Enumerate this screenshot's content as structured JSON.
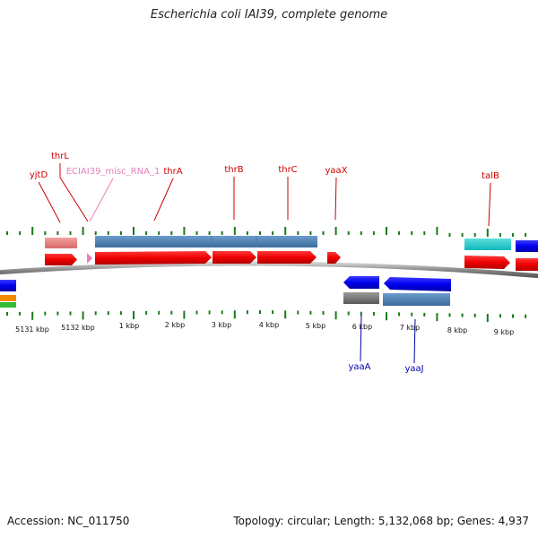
{
  "title": "Escherichia coli IAI39, complete genome",
  "footer": {
    "accession": "Accession: NC_011750",
    "summary": "Topology: circular; Length: 5,132,068 bp; Genes: 4,937"
  },
  "colors": {
    "gene_top": "#cc0000",
    "gene_bottom": "#0000aa",
    "misc_rna": "#e87fbf",
    "tick": "#1a7a1a",
    "backbone": "#888888"
  },
  "scale_labels": [
    "5131 kbp",
    "5132 kbp",
    "1 kbp",
    "2 kbp",
    "3 kbp",
    "4 kbp",
    "5 kbp",
    "6 kbp",
    "7 kbp",
    "8 kbp",
    "9 kbp"
  ],
  "top_genes": [
    {
      "name": "yjtD",
      "color": "red"
    },
    {
      "name": "thrL",
      "color": "red"
    },
    {
      "name": "ECIAI39_misc_RNA_1",
      "color": "pink"
    },
    {
      "name": "thrA",
      "color": "red"
    },
    {
      "name": "thrB",
      "color": "red"
    },
    {
      "name": "thrC",
      "color": "red"
    },
    {
      "name": "yaaX",
      "color": "red"
    },
    {
      "name": "talB",
      "color": "red"
    }
  ],
  "bottom_genes": [
    {
      "name": "yaaA",
      "color": "blue"
    },
    {
      "name": "yaaJ",
      "color": "blue"
    }
  ]
}
